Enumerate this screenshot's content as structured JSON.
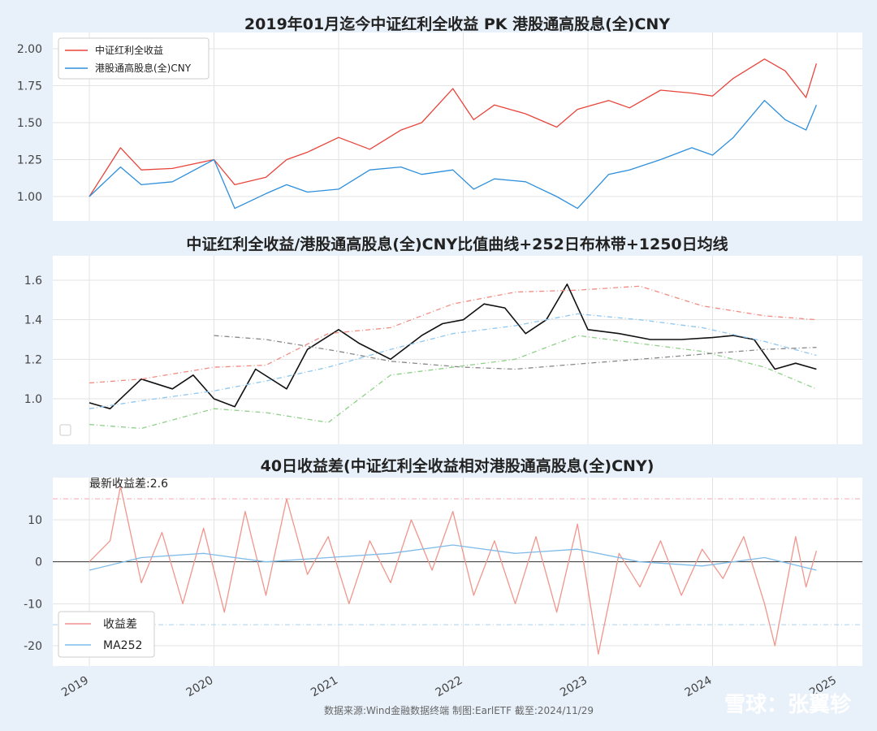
{
  "chart_data": [
    {
      "type": "line",
      "title": "2019年01月迄今中证红利全收益 PK 港股通高股息(全)CNY",
      "ylim": [
        0.9,
        2.05
      ],
      "yticks": [
        "1.00",
        "1.25",
        "1.50",
        "1.75",
        "2.00"
      ],
      "legend_position": "top-left",
      "series": [
        {
          "name": "中证红利全收益",
          "color": "#e8453c",
          "x": [
            "2019-01",
            "2019-04",
            "2019-06",
            "2019-09",
            "2020-01",
            "2020-03",
            "2020-06",
            "2020-08",
            "2020-10",
            "2021-01",
            "2021-04",
            "2021-07",
            "2021-09",
            "2021-12",
            "2022-02",
            "2022-04",
            "2022-07",
            "2022-10",
            "2022-12",
            "2023-03",
            "2023-05",
            "2023-08",
            "2023-11",
            "2024-01",
            "2024-03",
            "2024-06",
            "2024-08",
            "2024-10",
            "2024-11"
          ],
          "values": [
            1.0,
            1.33,
            1.18,
            1.19,
            1.25,
            1.08,
            1.13,
            1.25,
            1.3,
            1.4,
            1.32,
            1.45,
            1.5,
            1.73,
            1.52,
            1.62,
            1.56,
            1.47,
            1.59,
            1.65,
            1.6,
            1.72,
            1.7,
            1.68,
            1.8,
            1.93,
            1.85,
            1.67,
            1.9
          ]
        },
        {
          "name": "港股通高股息(全)CNY",
          "color": "#2e8fdb",
          "x": [
            "2019-01",
            "2019-04",
            "2019-06",
            "2019-09",
            "2020-01",
            "2020-03",
            "2020-06",
            "2020-08",
            "2020-10",
            "2021-01",
            "2021-04",
            "2021-07",
            "2021-09",
            "2021-12",
            "2022-02",
            "2022-04",
            "2022-07",
            "2022-10",
            "2022-12",
            "2023-03",
            "2023-05",
            "2023-08",
            "2023-11",
            "2024-01",
            "2024-03",
            "2024-06",
            "2024-08",
            "2024-10",
            "2024-11"
          ],
          "values": [
            1.0,
            1.2,
            1.08,
            1.1,
            1.25,
            0.92,
            1.02,
            1.08,
            1.03,
            1.05,
            1.18,
            1.2,
            1.15,
            1.18,
            1.05,
            1.12,
            1.1,
            1.0,
            0.92,
            1.15,
            1.18,
            1.25,
            1.33,
            1.28,
            1.4,
            1.65,
            1.52,
            1.45,
            1.62
          ]
        }
      ]
    },
    {
      "type": "line",
      "title": "中证红利全收益/港股通高股息(全)CNY比值曲线+252日布林带+1250日均线",
      "ylim": [
        0.78,
        1.72
      ],
      "yticks": [
        "1.0",
        "1.2",
        "1.4",
        "1.6"
      ],
      "series": [
        {
          "key": "ratio",
          "color": "#111111",
          "x": [
            "2019-01",
            "2019-03",
            "2019-06",
            "2019-09",
            "2019-11",
            "2020-01",
            "2020-03",
            "2020-05",
            "2020-08",
            "2020-10",
            "2021-01",
            "2021-03",
            "2021-06",
            "2021-09",
            "2021-11",
            "2022-01",
            "2022-03",
            "2022-05",
            "2022-07",
            "2022-09",
            "2022-11",
            "2023-01",
            "2023-04",
            "2023-07",
            "2023-10",
            "2024-01",
            "2024-03",
            "2024-05",
            "2024-07",
            "2024-09",
            "2024-11"
          ],
          "values": [
            0.98,
            0.95,
            1.1,
            1.05,
            1.12,
            1.0,
            0.96,
            1.15,
            1.05,
            1.25,
            1.35,
            1.28,
            1.2,
            1.32,
            1.38,
            1.4,
            1.48,
            1.46,
            1.33,
            1.4,
            1.58,
            1.35,
            1.33,
            1.3,
            1.3,
            1.31,
            1.32,
            1.3,
            1.15,
            1.18,
            1.15
          ]
        },
        {
          "key": "boll_upper",
          "color": "#f28b82",
          "x": [
            "2019-01",
            "2019-06",
            "2020-01",
            "2020-06",
            "2020-12",
            "2021-06",
            "2021-12",
            "2022-06",
            "2022-12",
            "2023-06",
            "2023-12",
            "2024-06",
            "2024-11"
          ],
          "values": [
            1.08,
            1.1,
            1.16,
            1.17,
            1.33,
            1.36,
            1.48,
            1.54,
            1.55,
            1.57,
            1.47,
            1.42,
            1.4
          ]
        },
        {
          "key": "boll_mid",
          "color": "#8ec7f0",
          "x": [
            "2019-01",
            "2019-06",
            "2020-01",
            "2020-06",
            "2020-12",
            "2021-06",
            "2021-12",
            "2022-06",
            "2022-12",
            "2023-06",
            "2023-12",
            "2024-06",
            "2024-11"
          ],
          "values": [
            0.95,
            0.99,
            1.04,
            1.09,
            1.16,
            1.25,
            1.33,
            1.37,
            1.43,
            1.4,
            1.36,
            1.29,
            1.22
          ]
        },
        {
          "key": "boll_lower",
          "color": "#8fd08a",
          "x": [
            "2019-01",
            "2019-06",
            "2020-01",
            "2020-06",
            "2020-12",
            "2021-06",
            "2021-12",
            "2022-06",
            "2022-12",
            "2023-06",
            "2023-12",
            "2024-06",
            "2024-11"
          ],
          "values": [
            0.87,
            0.85,
            0.95,
            0.93,
            0.88,
            1.12,
            1.16,
            1.2,
            1.32,
            1.28,
            1.24,
            1.16,
            1.05
          ]
        },
        {
          "key": "ma1250",
          "color": "#888888",
          "x": [
            "2020-01",
            "2020-06",
            "2021-01",
            "2021-06",
            "2022-01",
            "2022-06",
            "2023-01",
            "2023-06",
            "2024-01",
            "2024-06",
            "2024-11"
          ],
          "values": [
            1.32,
            1.3,
            1.24,
            1.19,
            1.16,
            1.15,
            1.18,
            1.2,
            1.23,
            1.25,
            1.26
          ]
        }
      ]
    },
    {
      "type": "line",
      "title": "40日收益差(中证红利全收益相对港股通高股息(全)CNY)",
      "ylim": [
        -24,
        20
      ],
      "yticks": [
        "10",
        "0",
        "-10",
        "-20"
      ],
      "annotation": "最新收益差:2.6",
      "reference_lines": [
        15,
        -15
      ],
      "legend_position": "bottom-left",
      "series": [
        {
          "name": "收益差",
          "color": "#f0968c",
          "x": [
            "2019-01",
            "2019-03",
            "2019-04",
            "2019-06",
            "2019-08",
            "2019-10",
            "2019-12",
            "2020-02",
            "2020-04",
            "2020-06",
            "2020-08",
            "2020-10",
            "2020-12",
            "2021-02",
            "2021-04",
            "2021-06",
            "2021-08",
            "2021-10",
            "2021-12",
            "2022-02",
            "2022-04",
            "2022-06",
            "2022-08",
            "2022-10",
            "2022-12",
            "2023-02",
            "2023-04",
            "2023-06",
            "2023-08",
            "2023-10",
            "2023-12",
            "2024-02",
            "2024-04",
            "2024-06",
            "2024-07",
            "2024-09",
            "2024-10",
            "2024-11"
          ],
          "values": [
            0,
            5,
            18,
            -5,
            7,
            -10,
            8,
            -12,
            12,
            -8,
            15,
            -3,
            6,
            -10,
            5,
            -5,
            10,
            -2,
            12,
            -8,
            5,
            -10,
            6,
            -12,
            9,
            -22,
            2,
            -6,
            5,
            -8,
            3,
            -4,
            6,
            -10,
            -20,
            6,
            -6,
            2.6
          ]
        },
        {
          "name": "MA252",
          "color": "#7fbbe8",
          "x": [
            "2019-01",
            "2019-06",
            "2019-12",
            "2020-06",
            "2020-12",
            "2021-06",
            "2021-12",
            "2022-06",
            "2022-12",
            "2023-06",
            "2023-12",
            "2024-06",
            "2024-11"
          ],
          "values": [
            -2,
            1,
            2,
            0,
            1,
            2,
            4,
            2,
            3,
            0,
            -1,
            1,
            -2
          ]
        }
      ]
    }
  ],
  "x_axis_ticks": [
    "2019",
    "2020",
    "2021",
    "2022",
    "2023",
    "2024",
    "2025"
  ],
  "footer": "数据来源:Wind金融数据终端  制图:EarlETF 截至:2024/11/29",
  "watermark": "雪球：张翼轸"
}
